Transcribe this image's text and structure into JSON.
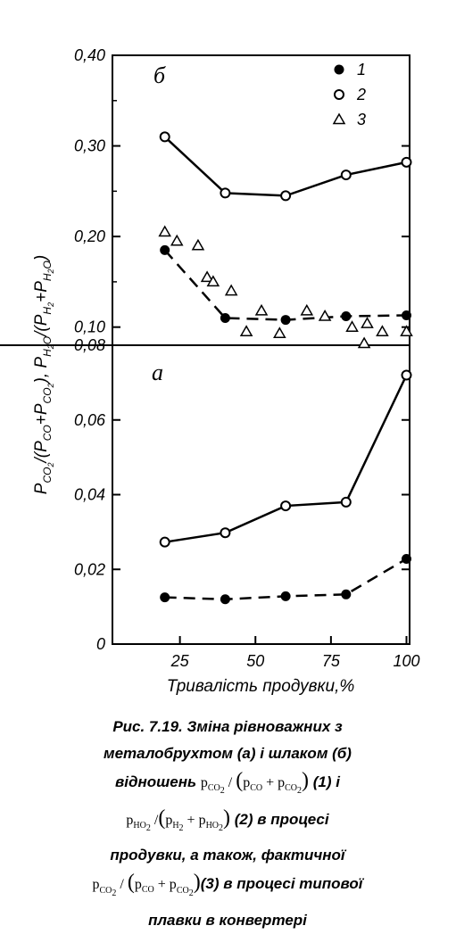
{
  "chart_data": [
    {
      "type": "scatter",
      "panel_label": "б",
      "ylim": [
        0.08,
        0.4
      ],
      "xlim": [
        0,
        100
      ],
      "yticks": [
        "0,40",
        "0,30",
        "0,20",
        "0,10",
        "0,08"
      ],
      "legend": {
        "placement": "top-right",
        "entries": [
          "1",
          "2",
          "3"
        ]
      },
      "series": [
        {
          "name": "1",
          "marker": "filled-circle",
          "line": "dashed",
          "x": [
            20,
            40,
            60,
            80,
            100
          ],
          "y": [
            0.185,
            0.11,
            0.108,
            0.112,
            0.113
          ]
        },
        {
          "name": "2",
          "marker": "open-circle",
          "line": "solid",
          "x": [
            20,
            40,
            60,
            80,
            100
          ],
          "y": [
            0.31,
            0.248,
            0.245,
            0.268,
            0.282
          ]
        },
        {
          "name": "3",
          "marker": "open-triangle",
          "line": "none",
          "x": [
            20,
            24,
            31,
            34,
            36,
            42,
            47,
            52,
            58,
            67,
            73,
            82,
            87,
            92,
            100,
            86
          ],
          "y": [
            0.205,
            0.195,
            0.19,
            0.155,
            0.15,
            0.14,
            0.095,
            0.118,
            0.093,
            0.118,
            0.112,
            0.1,
            0.104,
            0.095,
            0.095,
            0.082
          ]
        }
      ]
    },
    {
      "type": "line",
      "panel_label": "а",
      "xlabel": "Тривалість продувки,%",
      "ylim": [
        0,
        0.08
      ],
      "xlim": [
        0,
        100
      ],
      "yticks": [
        "0,06",
        "0,04",
        "0,02",
        "0"
      ],
      "xticks": [
        "25",
        "50",
        "75",
        "100"
      ],
      "series": [
        {
          "name": "1",
          "marker": "filled-circle",
          "line": "dashed",
          "x": [
            20,
            40,
            60,
            80,
            100
          ],
          "y": [
            0.0125,
            0.012,
            0.0128,
            0.0133,
            0.0228
          ]
        },
        {
          "name": "2",
          "marker": "open-circle",
          "line": "solid",
          "x": [
            20,
            40,
            60,
            80,
            100
          ],
          "y": [
            0.0273,
            0.0298,
            0.037,
            0.038,
            0.072
          ]
        }
      ]
    }
  ],
  "ylabel": {
    "part_a": "P",
    "sub_co2": "CO",
    "sub_co2_2": "2",
    "slash": "/(P",
    "sub_co": "CO",
    "plus1": "+P",
    "close1": "),  P",
    "sub_h2o": "H",
    "sub_h2o_o": "2",
    "o": "O",
    "slash2": "/(P",
    "sub_h2": "H",
    "sub_h2_2": "2",
    "plus2": "+P",
    "close2": ")"
  },
  "caption": {
    "line1": "Рис. 7.19. Зміна рівноважних з",
    "line2": "металобрухтом (а) і шлаком (б)",
    "line3_pre": "відношень",
    "line3_post": "(1)   і",
    "line4_post": "(2) в процесі",
    "line5": "продувки, а також, фактичної",
    "line6_post": "(3) в процесі типової",
    "line7": "плавки в конвертері"
  }
}
